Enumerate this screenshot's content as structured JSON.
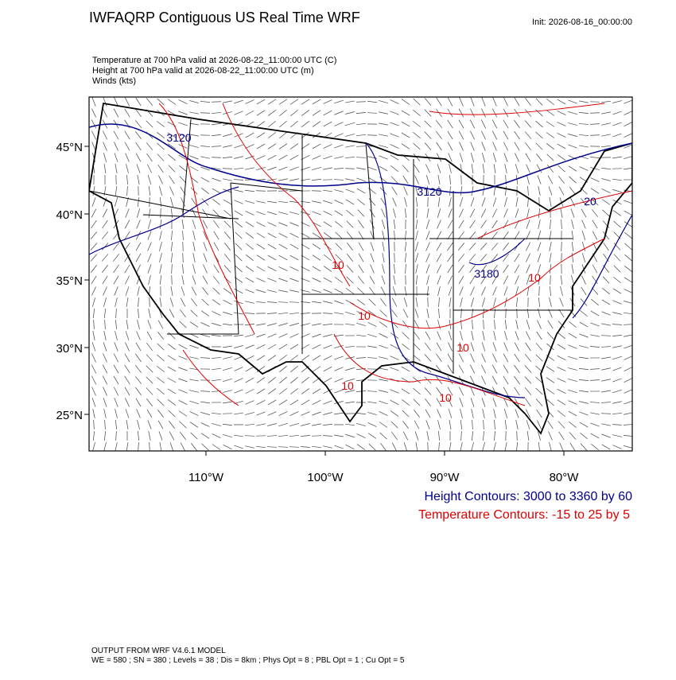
{
  "header": {
    "title": "IWFAQRP Contiguous US Real Time WRF",
    "init": "Init: 2026-08-16_00:00:00"
  },
  "fields": [
    "Temperature at 700 hPa valid at 2026-08-22_11:00:00 UTC   (C)",
    "Height at 700 hPa valid at 2026-08-22_11:00:00 UTC   (m)",
    "Winds   (kts)"
  ],
  "lat_labels": [
    "45°N",
    "40°N",
    "35°N",
    "30°N",
    "25°N"
  ],
  "lon_labels": [
    "110°W",
    "100°W",
    "90°W",
    "80°W"
  ],
  "contour_labels": [
    "3120",
    "3120",
    "3180",
    "20",
    "10",
    "10",
    "10",
    "10",
    "10",
    "10"
  ],
  "legend": [
    "Height Contours: 3000 to 3360 by 60",
    "Temperature Contours: -15 to 25 by 5"
  ],
  "footer": [
    "OUTPUT FROM WRF V4.6.1 MODEL",
    "WE = 580 ; SN = 380 ; Levels = 38 ; Dis = 8km ; Phys Opt = 8 ; PBL Opt = 1 ; Cu Opt = 5"
  ]
}
